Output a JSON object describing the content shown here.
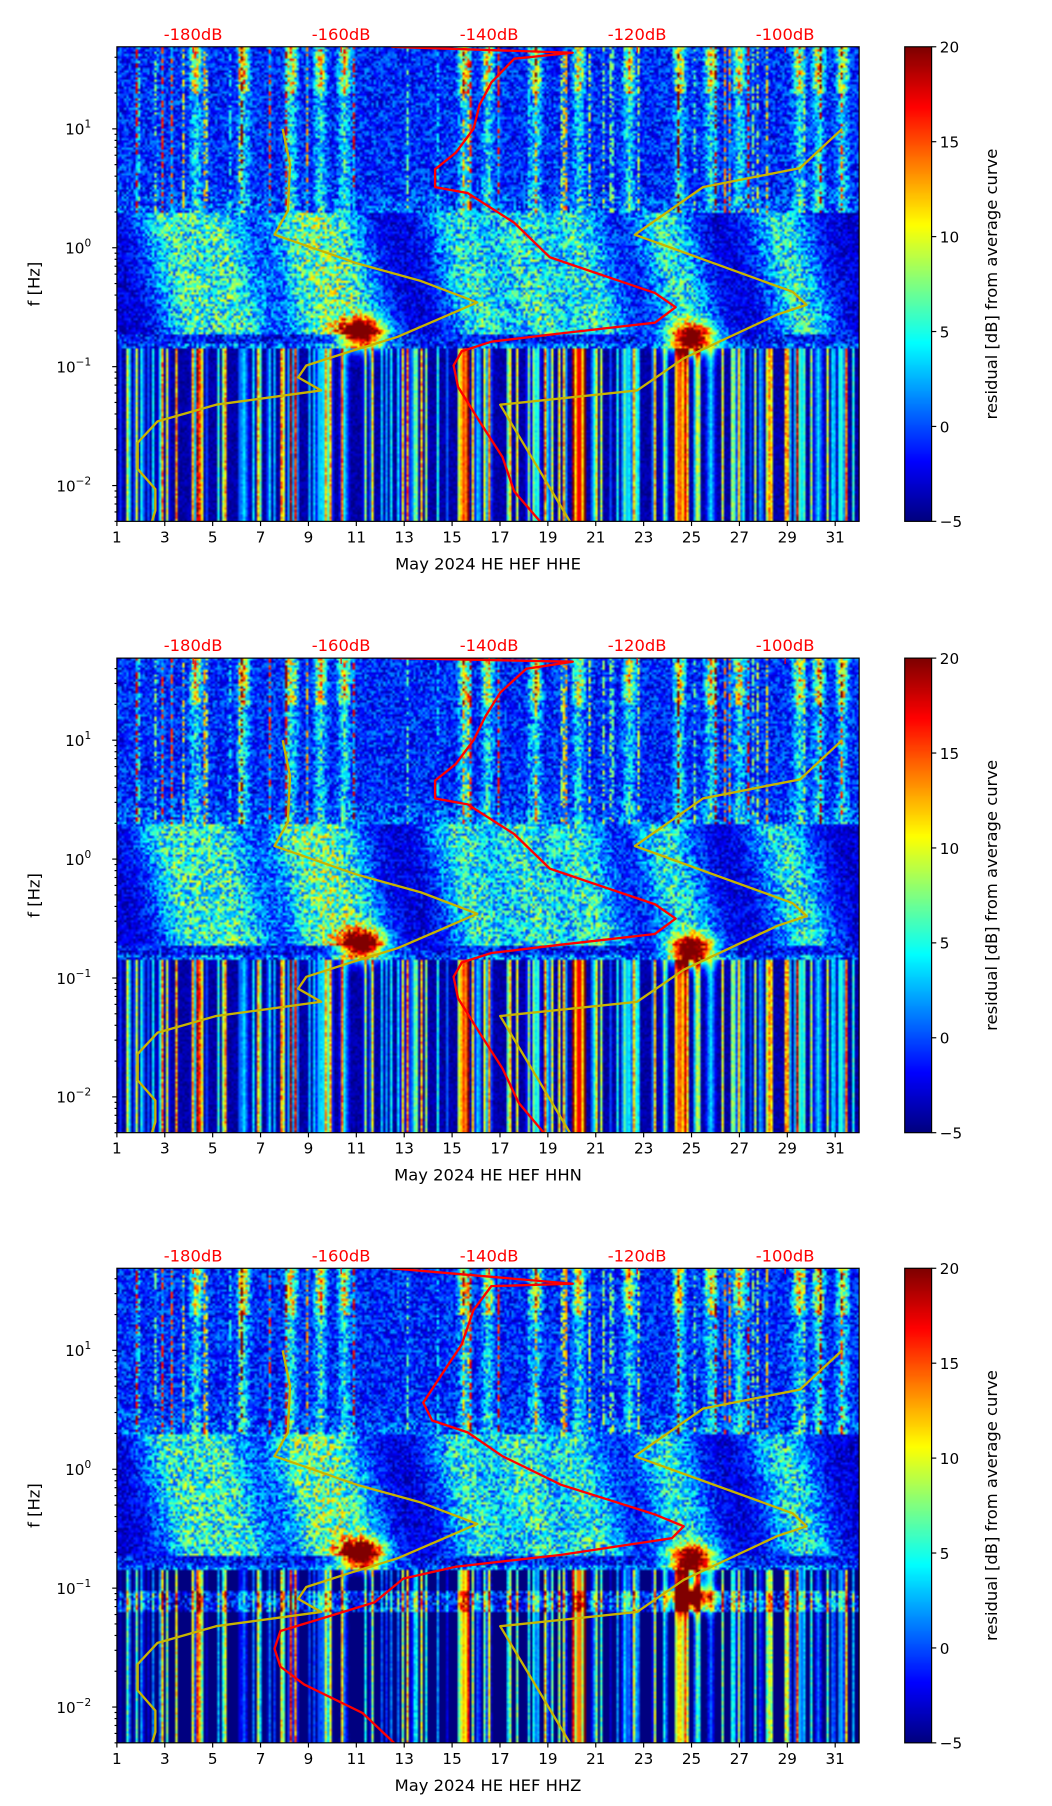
{
  "chart_data": {
    "type": "heatmap",
    "description_units": {
      "x": "day of month",
      "y": "frequency [Hz]",
      "color": "residual [dB]"
    },
    "x_ticks": [
      "1",
      "3",
      "5",
      "7",
      "9",
      "11",
      "13",
      "15",
      "17",
      "19",
      "21",
      "23",
      "25",
      "27",
      "29",
      "31"
    ],
    "x_range": [
      1,
      32
    ],
    "y_ticks": [
      {
        "base": "10",
        "exp": "1",
        "value": 10
      },
      {
        "base": "10",
        "exp": "0",
        "value": 1
      },
      {
        "base": "10",
        "exp": "−1",
        "value": 0.1
      },
      {
        "base": "10",
        "exp": "−2",
        "value": 0.01
      }
    ],
    "y_range": [
      0.005,
      49
    ],
    "ylabel": "f [Hz]",
    "top_axis": {
      "labels": [
        "-180dB",
        "-160dB",
        "-140dB",
        "-120dB",
        "-100dB"
      ],
      "values": [
        -180,
        -160,
        -140,
        -120,
        -100
      ],
      "range": [
        -190.3,
        -90
      ]
    },
    "colorbar": {
      "label": "residual [dB] from average curve",
      "ticks": [
        "20",
        "15",
        "10",
        "5",
        "0",
        "−5"
      ],
      "values": [
        20,
        15,
        10,
        5,
        0,
        -5
      ],
      "range": [
        -5,
        20
      ],
      "colormap": "jet"
    },
    "colors": {
      "median_curve": "#ff0000",
      "noise_models": "#c8b400"
    },
    "noise_models": {
      "low": [
        [
          -185.6,
          -2.31
        ],
        [
          -185.1,
          -2.21
        ],
        [
          -185.1,
          -2.03
        ],
        [
          -187.5,
          -1.86
        ],
        [
          -187.5,
          -1.64
        ],
        [
          -184.8,
          -1.46
        ],
        [
          -176.9,
          -1.32
        ],
        [
          -162.7,
          -1.2
        ],
        [
          -165.8,
          -1.09
        ],
        [
          -164.7,
          -0.99
        ],
        [
          -158.7,
          -0.87
        ],
        [
          -152.4,
          -0.75
        ],
        [
          -141.6,
          -0.46
        ],
        [
          -149.2,
          -0.28
        ],
        [
          -157.9,
          -0.13
        ],
        [
          -169.0,
          0.11
        ],
        [
          -167.2,
          0.31
        ],
        [
          -166.9,
          0.7
        ],
        [
          -167.9,
          1.0
        ]
      ],
      "high": [
        [
          -129.0,
          -2.31
        ],
        [
          -138.5,
          -1.32
        ],
        [
          -120.0,
          -1.2
        ],
        [
          -113.7,
          -0.93
        ],
        [
          -101.0,
          -0.56
        ],
        [
          -97.1,
          -0.48
        ],
        [
          -99.0,
          -0.37
        ],
        [
          -120.3,
          0.11
        ],
        [
          -111.1,
          0.51
        ],
        [
          -98.0,
          0.67
        ],
        [
          -92.3,
          1.0
        ]
      ]
    },
    "panels": [
      {
        "title": "May 2024 HE HEF  HHE",
        "channel": "HHE",
        "hot_spots": [
          {
            "day": 11.2,
            "f": 0.19
          },
          {
            "day": 25.0,
            "f": 0.17
          }
        ],
        "median_curve": [
          [
            -153.2,
            1.69
          ],
          [
            -128.7,
            1.64
          ],
          [
            -136.6,
            1.59
          ],
          [
            -139.7,
            1.39
          ],
          [
            -141.3,
            1.2
          ],
          [
            -142.1,
            1.0
          ],
          [
            -144.5,
            0.8
          ],
          [
            -147.3,
            0.66
          ],
          [
            -147.3,
            0.51
          ],
          [
            -142.9,
            0.46
          ],
          [
            -136.6,
            0.21
          ],
          [
            -131.8,
            -0.08
          ],
          [
            -127.1,
            -0.18
          ],
          [
            -117.6,
            -0.38
          ],
          [
            -114.8,
            -0.5
          ],
          [
            -117.6,
            -0.63
          ],
          [
            -130.3,
            -0.72
          ],
          [
            -139.7,
            -0.79
          ],
          [
            -143.7,
            -0.87
          ],
          [
            -144.8,
            -0.99
          ],
          [
            -144.2,
            -1.17
          ],
          [
            -141.3,
            -1.46
          ],
          [
            -138.2,
            -1.76
          ],
          [
            -136.6,
            -2.05
          ],
          [
            -133.0,
            -2.31
          ]
        ]
      },
      {
        "title": "May 2024 HE HEF  HHN",
        "channel": "HHN",
        "hot_spots": [
          {
            "day": 11.2,
            "f": 0.19
          },
          {
            "day": 25.0,
            "f": 0.17
          }
        ],
        "median_curve": [
          [
            -153.2,
            1.69
          ],
          [
            -128.7,
            1.66
          ],
          [
            -135.0,
            1.6
          ],
          [
            -138.5,
            1.4
          ],
          [
            -140.5,
            1.2
          ],
          [
            -142.1,
            1.0
          ],
          [
            -144.5,
            0.8
          ],
          [
            -147.3,
            0.66
          ],
          [
            -147.3,
            0.51
          ],
          [
            -142.9,
            0.46
          ],
          [
            -136.6,
            0.21
          ],
          [
            -131.8,
            -0.08
          ],
          [
            -127.1,
            -0.18
          ],
          [
            -117.6,
            -0.38
          ],
          [
            -114.8,
            -0.5
          ],
          [
            -117.6,
            -0.63
          ],
          [
            -130.3,
            -0.72
          ],
          [
            -139.7,
            -0.79
          ],
          [
            -143.7,
            -0.87
          ],
          [
            -144.8,
            -0.99
          ],
          [
            -144.2,
            -1.17
          ],
          [
            -141.3,
            -1.46
          ],
          [
            -138.2,
            -1.76
          ],
          [
            -136.0,
            -2.05
          ],
          [
            -132.5,
            -2.31
          ]
        ]
      },
      {
        "title": "May 2024 HE HEF  HHZ",
        "channel": "HHZ",
        "hot_spots": [
          {
            "day": 11.2,
            "f": 0.19
          },
          {
            "day": 25.0,
            "f": 0.17
          },
          {
            "day": 25.0,
            "f": 0.085
          }
        ],
        "median_curve": [
          [
            -153.2,
            1.69
          ],
          [
            -128.7,
            1.56
          ],
          [
            -139.7,
            1.54
          ],
          [
            -142.1,
            1.34
          ],
          [
            -143.7,
            1.05
          ],
          [
            -146.9,
            0.75
          ],
          [
            -148.9,
            0.56
          ],
          [
            -147.7,
            0.41
          ],
          [
            -142.9,
            0.31
          ],
          [
            -138.2,
            0.11
          ],
          [
            -130.3,
            -0.13
          ],
          [
            -117.6,
            -0.38
          ],
          [
            -113.7,
            -0.48
          ],
          [
            -115.3,
            -0.58
          ],
          [
            -130.3,
            -0.72
          ],
          [
            -144.5,
            -0.82
          ],
          [
            -151.6,
            -0.92
          ],
          [
            -155.5,
            -1.12
          ],
          [
            -163.4,
            -1.27
          ],
          [
            -168.2,
            -1.36
          ],
          [
            -169.0,
            -1.51
          ],
          [
            -168.2,
            -1.66
          ],
          [
            -165.0,
            -1.81
          ],
          [
            -157.1,
            -2.05
          ],
          [
            -152.7,
            -2.31
          ]
        ]
      }
    ]
  }
}
